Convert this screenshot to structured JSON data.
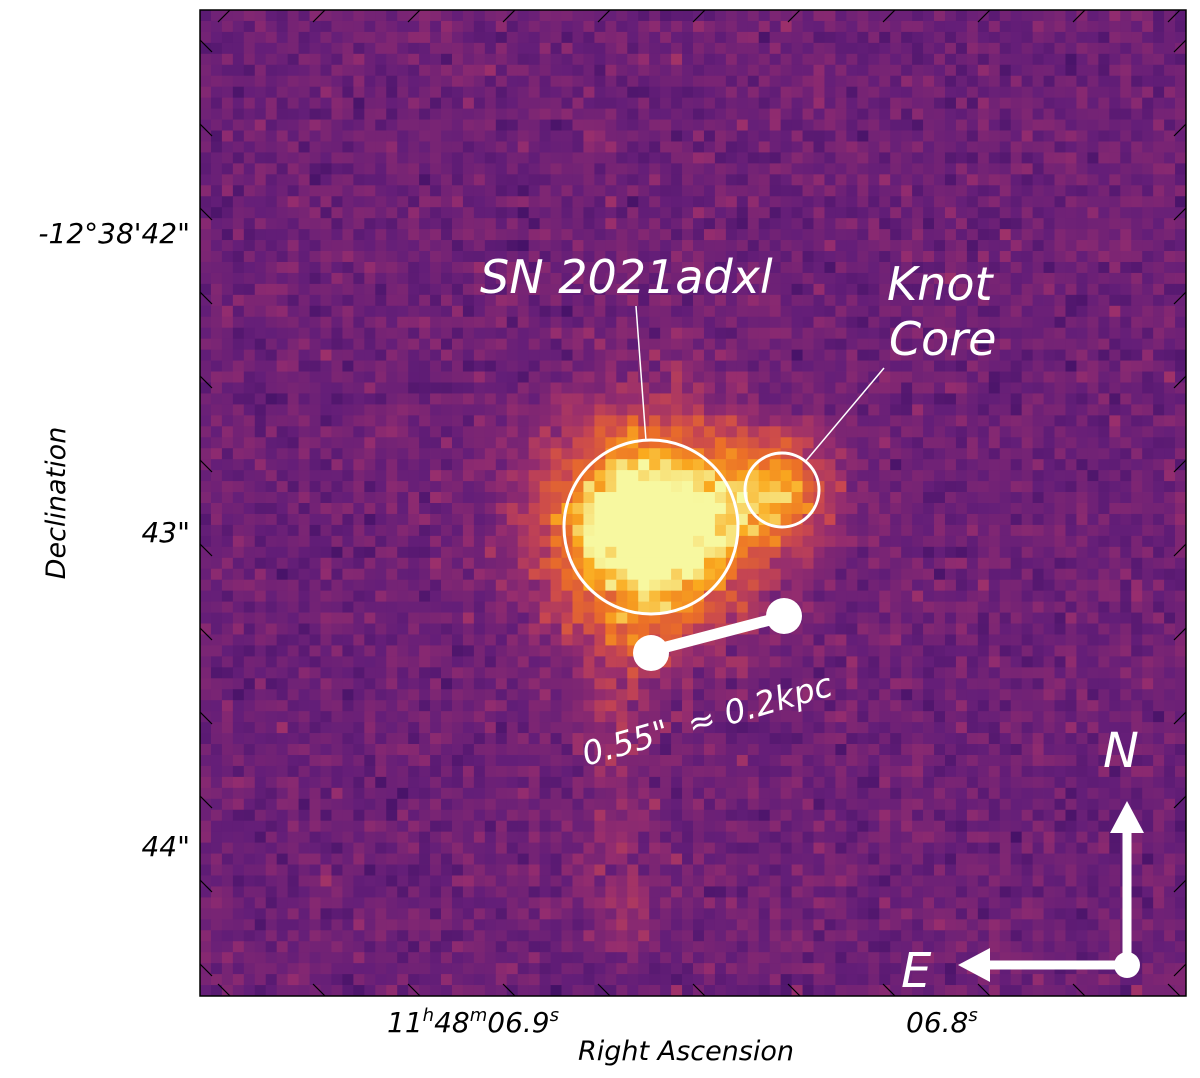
{
  "axes": {
    "xlabel": "Right Ascension",
    "ylabel": "Declination",
    "xticks": [
      {
        "base": "11",
        "h": "h",
        "m_val": "48",
        "m": "m",
        "s_val": "06.9",
        "s": "s"
      },
      {
        "base": "",
        "h": "",
        "m_val": "",
        "m": "",
        "s_val": "06.8",
        "s": "s"
      }
    ],
    "yticks": [
      "-12°38'42\"",
      "43\"",
      "44\""
    ]
  },
  "annotations": {
    "sn_label": "SN 2021adxl",
    "knot_label_line1": "Knot",
    "knot_label_line2": "Core",
    "scale_label": "0.55\"  ≈ 0.2kpc"
  },
  "compass": {
    "north": "N",
    "east": "E"
  },
  "colors": {
    "colormap": "inferno",
    "background_pixel": "#6e1f78",
    "core_glow": "#f6f79a",
    "annotation": "#ffffff"
  }
}
